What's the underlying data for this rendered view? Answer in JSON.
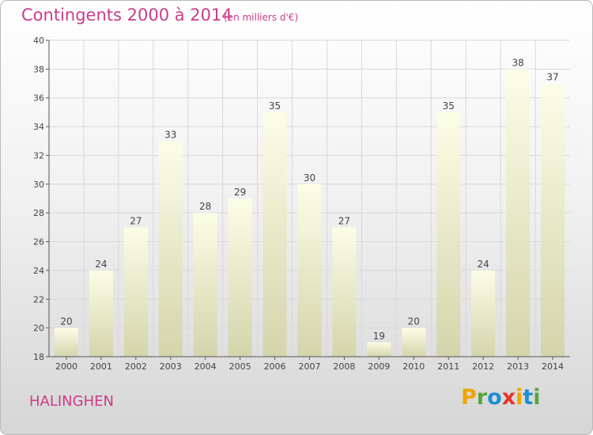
{
  "header": {
    "title": "Contingents 2000 à 2014",
    "subtitle": "(en milliers d'€)"
  },
  "footer": {
    "place": "HALINGHEN",
    "logo_letters": [
      "P",
      "r",
      "o",
      "x",
      "i",
      "t",
      "i"
    ],
    "logo_colors": [
      "#f0a400",
      "#5aa43c",
      "#1c8fd6",
      "#e8332a",
      "#f0a400",
      "#1c8fd6",
      "#5aa43c"
    ]
  },
  "chart_data": {
    "type": "bar",
    "categories": [
      "2000",
      "2001",
      "2002",
      "2003",
      "2004",
      "2005",
      "2006",
      "2007",
      "2008",
      "2009",
      "2010",
      "2011",
      "2012",
      "2013",
      "2014"
    ],
    "values": [
      20,
      24,
      27,
      33,
      28,
      29,
      35,
      30,
      27,
      19,
      20,
      35,
      24,
      38,
      37
    ],
    "yticks": [
      18,
      20,
      22,
      24,
      26,
      28,
      30,
      32,
      34,
      36,
      38,
      40
    ],
    "ylim": [
      18,
      40
    ],
    "grid": true,
    "bar_color_top": "#fcfde6",
    "bar_color_bottom": "#d4d4ac"
  }
}
